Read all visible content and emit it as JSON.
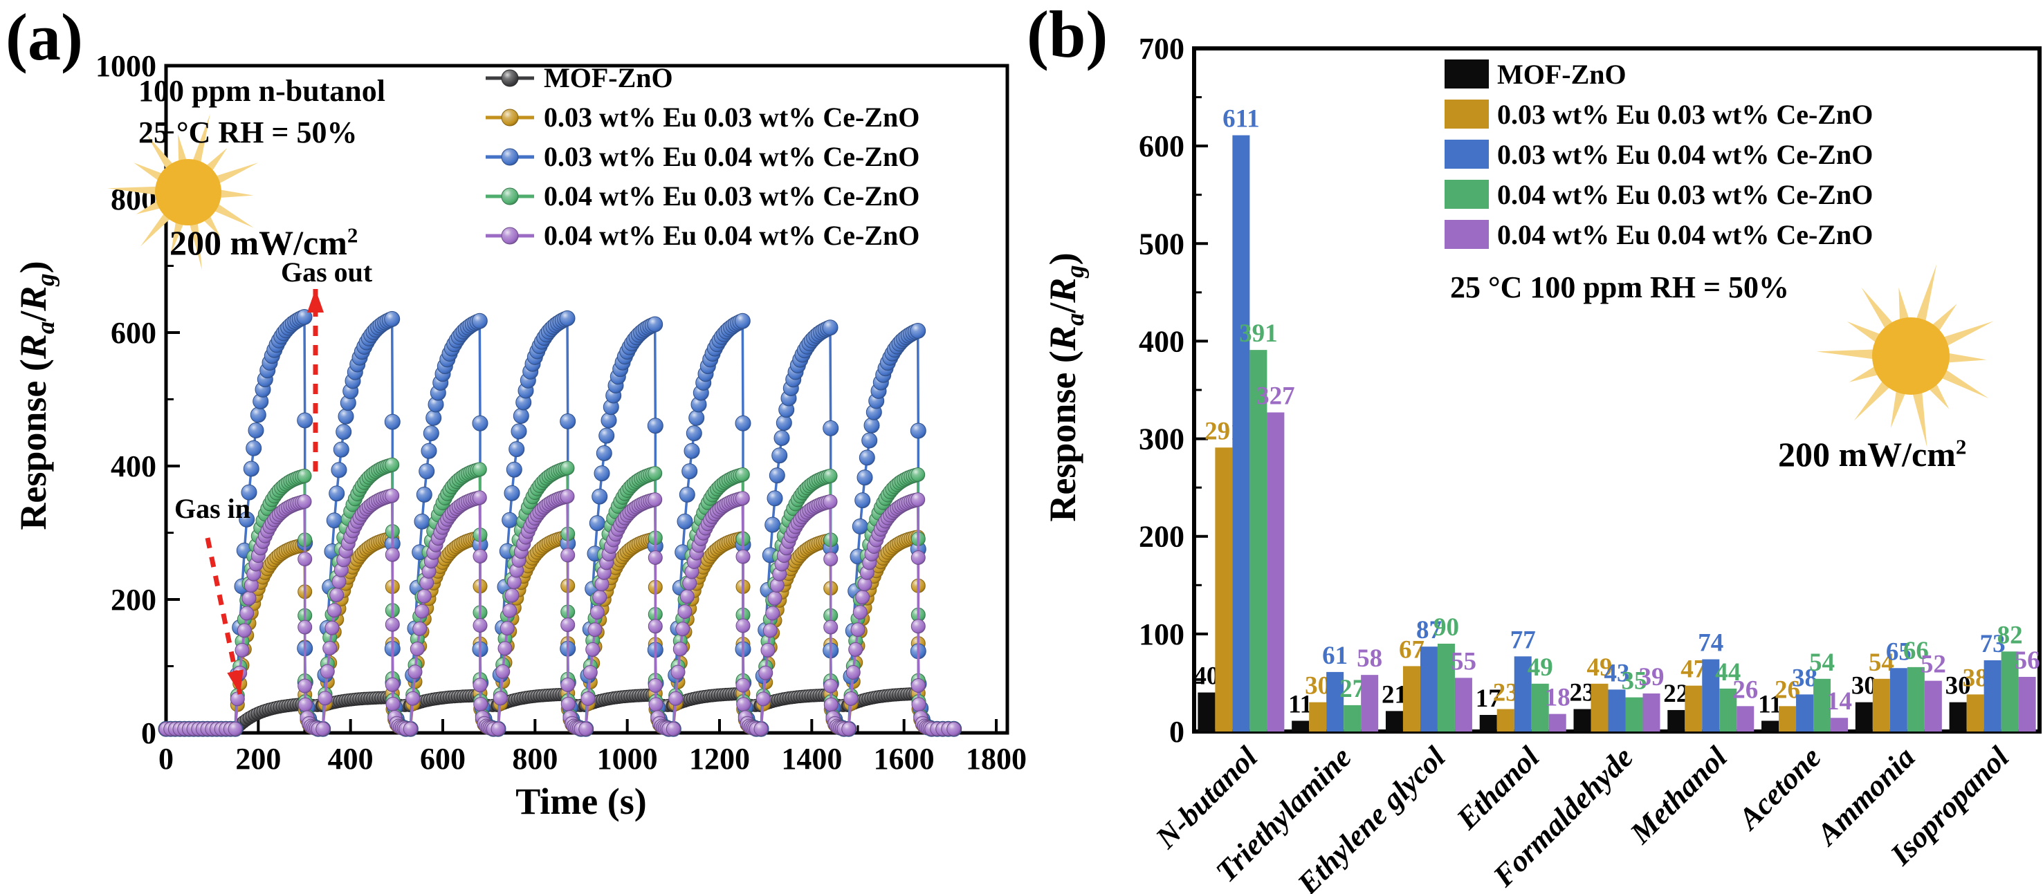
{
  "figure": {
    "panel_a_label": "(a)",
    "panel_b_label": "(b)"
  },
  "response_label": {
    "pre": "Response (",
    "ra": "R",
    "sa": "a",
    "slash": "/",
    "rg": "R",
    "sg": "g",
    "post": ")"
  },
  "series_labels": [
    "MOF-ZnO",
    "0.03 wt% Eu 0.03 wt% Ce-ZnO",
    "0.03 wt% Eu 0.04 wt% Ce-ZnO",
    "0.04 wt% Eu 0.03 wt% Ce-ZnO",
    "0.04 wt% Eu 0.04 wt% Ce-ZnO"
  ],
  "colors": {
    "black_series": "#3d3d40",
    "bar_black": "#0c0c0c",
    "gold": "#c3921e",
    "blue": "#4472c7",
    "green": "#4fae6e",
    "purple": "#9c6cc5",
    "red_arrow": "#e8251f",
    "sun_core": "#eeb42d",
    "sun_rays": "#f5d585"
  },
  "panel_a": {
    "annotations": {
      "line1": "100 ppm n-butanol",
      "line2": "25 °C RH = 50%",
      "gas_in": "Gas in",
      "gas_out": "Gas out"
    },
    "power": {
      "main": "200 mW/cm",
      "sup": "2"
    },
    "x_axis": {
      "title": "Time (s)",
      "min": 0,
      "max": 1800,
      "major": 200,
      "minor": 100
    },
    "y_axis": {
      "min": 0,
      "max": 1000,
      "major": 200,
      "minor": 100
    }
  },
  "panel_b": {
    "condition": "25 °C 100 ppm RH = 50%",
    "power": {
      "main": "200 mW/cm",
      "sup": "2"
    },
    "y_axis": {
      "min": 0,
      "max": 700,
      "major": 100,
      "minor": 50
    }
  },
  "chart_data": [
    {
      "panel": "a",
      "type": "line",
      "title": "",
      "xlabel": "Time (s)",
      "ylabel": "Response (Ra/Rg)",
      "xlim": [
        0,
        1800
      ],
      "ylim": [
        0,
        1000
      ],
      "grid": false,
      "legend_position": "top-center-inside",
      "gas_in_times": [
        150,
        340,
        530,
        720,
        910,
        1100,
        1290,
        1480
      ],
      "exposure_s": 150,
      "baseline": 6,
      "annotations": [
        "100 ppm n-butanol",
        "25 °C RH = 50%",
        "200 mW/cm2",
        "Gas in",
        "Gas out"
      ],
      "series": [
        {
          "name": "MOF-ZnO",
          "color": "#3d3d40",
          "cycle_peaks": [
            46,
            54,
            57,
            59,
            58,
            60,
            58,
            60
          ]
        },
        {
          "name": "0.03 wt% Eu 0.03 wt% Ce-ZnO",
          "color": "#c3921e",
          "cycle_peaks": [
            286,
            296,
            297,
            298,
            295,
            296,
            293,
            298
          ]
        },
        {
          "name": "0.03 wt% Eu 0.04 wt% Ce-ZnO",
          "color": "#4472c7",
          "cycle_peaks": [
            633,
            630,
            627,
            631,
            622,
            627,
            617,
            612
          ]
        },
        {
          "name": "0.04 wt% Eu 0.03 wt% Ce-ZnO",
          "color": "#4fae6e",
          "cycle_peaks": [
            391,
            408,
            401,
            403,
            395,
            393,
            391,
            393
          ]
        },
        {
          "name": "0.04 wt% Eu 0.04 wt% Ce-ZnO",
          "color": "#9c6cc5",
          "cycle_peaks": [
            352,
            361,
            358,
            360,
            355,
            357,
            352,
            355
          ]
        }
      ]
    },
    {
      "panel": "b",
      "type": "bar",
      "title": "",
      "xlabel": "",
      "ylabel": "Response (Ra/Rg)",
      "ylim": [
        0,
        700
      ],
      "grid": false,
      "legend_position": "top-right-inside",
      "categories": [
        "N-butanol",
        "Triethylamine",
        "Ethylene glycol",
        "Ethanol",
        "Formaldehyde",
        "Methanol",
        "Acetone",
        "Ammonia",
        "Isopropanol"
      ],
      "series": [
        {
          "name": "MOF-ZnO",
          "color": "#0c0c0c",
          "label_color": "#000000",
          "values": [
            40,
            11,
            21,
            17,
            23,
            22,
            11,
            30,
            30
          ]
        },
        {
          "name": "0.03 wt% Eu 0.03 wt% Ce-ZnO",
          "color": "#c3921e",
          "label_color": "#c3921e",
          "values": [
            291,
            30,
            67,
            23,
            49,
            47,
            26,
            54,
            38
          ]
        },
        {
          "name": "0.03 wt% Eu 0.04 wt% Ce-ZnO",
          "color": "#4472c7",
          "label_color": "#4472c7",
          "values": [
            611,
            61,
            87,
            77,
            43,
            74,
            38,
            65,
            73
          ]
        },
        {
          "name": "0.04 wt% Eu 0.03 wt% Ce-ZnO",
          "color": "#4fae6e",
          "label_color": "#4fae6e",
          "values": [
            391,
            27,
            90,
            49,
            35,
            44,
            54,
            66,
            82
          ]
        },
        {
          "name": "0.04 wt% Eu 0.04 wt% Ce-ZnO",
          "color": "#9c6cc5",
          "label_color": "#9c6cc5",
          "values": [
            327,
            58,
            55,
            18,
            39,
            26,
            14,
            52,
            56
          ]
        }
      ]
    }
  ]
}
